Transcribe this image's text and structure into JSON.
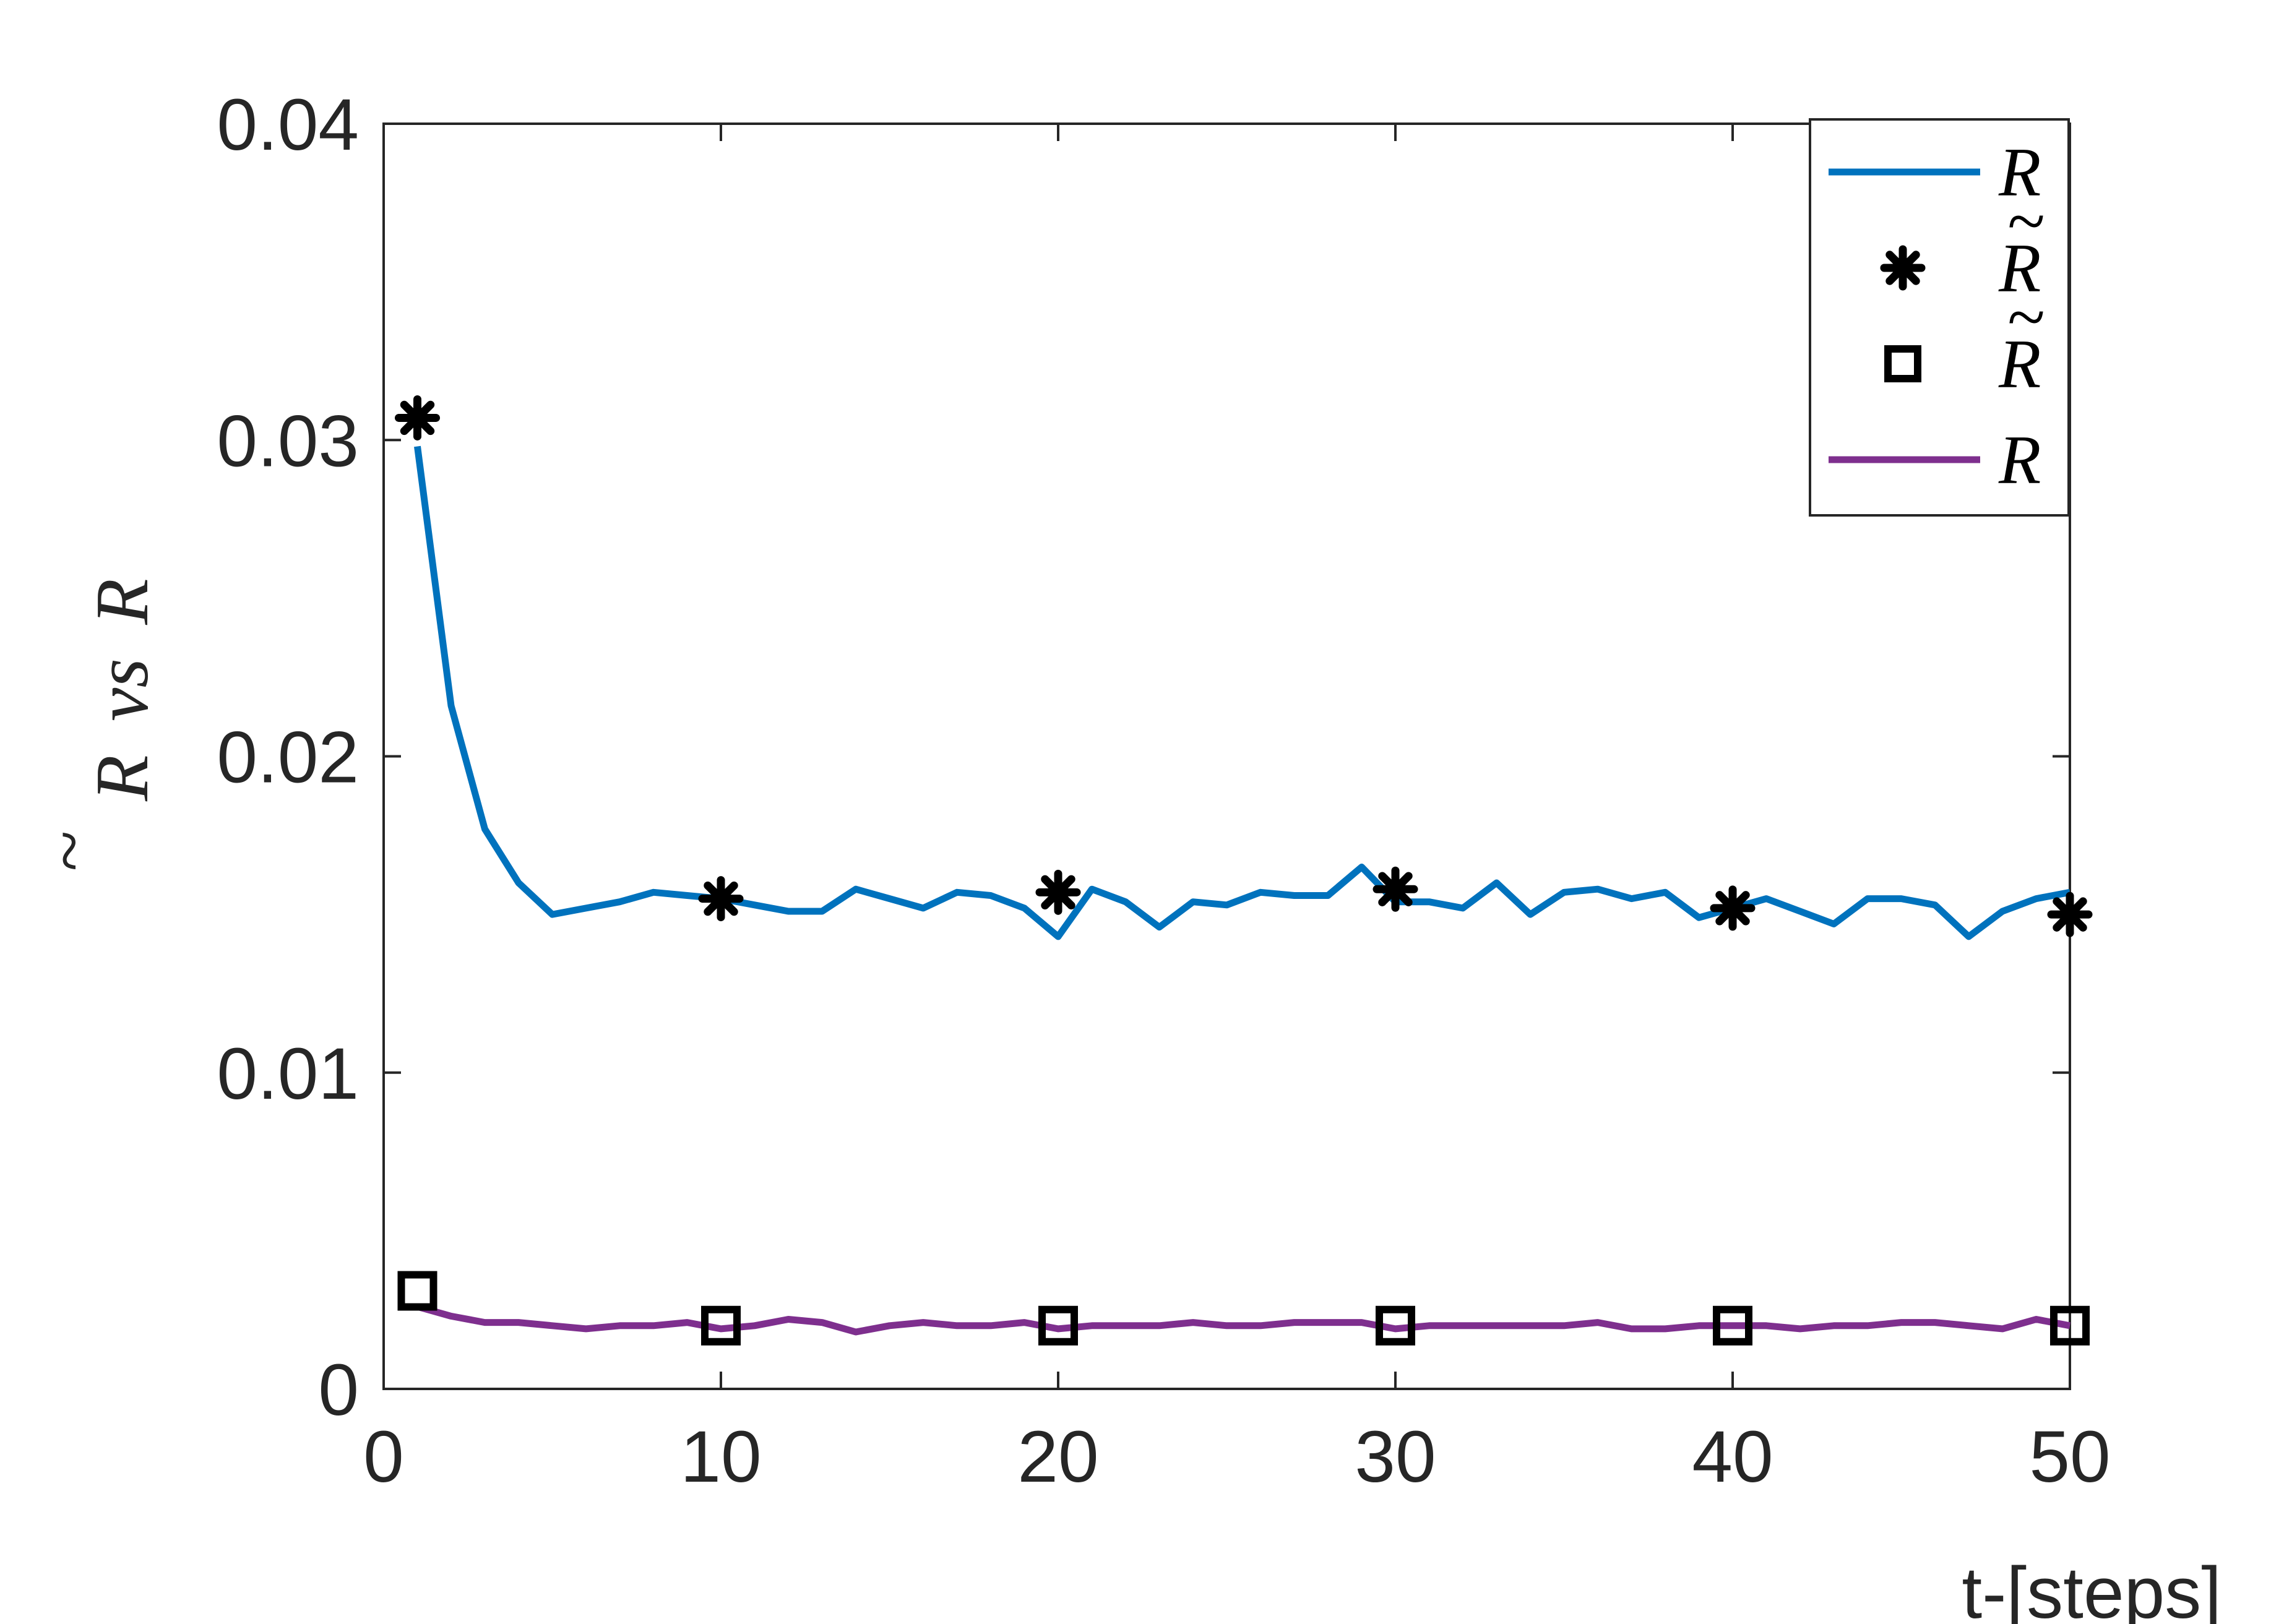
{
  "chart_data": {
    "type": "line",
    "title": "",
    "xlabel": "t-[steps]",
    "ylabel": {
      "tilde": "~",
      "r_tilde": "R",
      "vs": "vs",
      "r": "R"
    },
    "xlim": [
      0,
      50
    ],
    "ylim": [
      0,
      0.04
    ],
    "xticks": [
      "0",
      "10",
      "20",
      "30",
      "40",
      "50"
    ],
    "yticks": [
      "0",
      "0.01",
      "0.02",
      "0.03",
      "0.04"
    ],
    "grid": false,
    "legend_position": "top-right",
    "legend": [
      {
        "tilde": "",
        "label": "R",
        "kind": "line",
        "color": "#0072BD"
      },
      {
        "tilde": "~",
        "label": "R",
        "kind": "asterisk",
        "color": "#000000"
      },
      {
        "tilde": "~",
        "label": "R",
        "kind": "square",
        "color": "#000000"
      },
      {
        "tilde": "",
        "label": "R",
        "kind": "line",
        "color": "#7E2F8E"
      }
    ],
    "series": [
      {
        "kind": "line",
        "color": "#0072BD",
        "x": [
          1,
          2,
          3,
          4,
          5,
          6,
          7,
          8,
          9,
          10,
          11,
          12,
          13,
          14,
          15,
          16,
          17,
          18,
          19,
          20,
          21,
          22,
          23,
          24,
          25,
          26,
          27,
          28,
          29,
          30,
          31,
          32,
          33,
          34,
          35,
          36,
          37,
          38,
          39,
          40,
          41,
          42,
          43,
          44,
          45,
          46,
          47,
          48,
          49,
          50
        ],
        "values": [
          0.0298,
          0.0216,
          0.0177,
          0.016,
          0.015,
          0.0152,
          0.0154,
          0.0157,
          0.0156,
          0.0155,
          0.0153,
          0.0151,
          0.0151,
          0.0158,
          0.0155,
          0.0152,
          0.0157,
          0.0156,
          0.0152,
          0.0143,
          0.0158,
          0.0154,
          0.0146,
          0.0154,
          0.0153,
          0.0157,
          0.0156,
          0.0156,
          0.0165,
          0.0154,
          0.0154,
          0.0152,
          0.016,
          0.015,
          0.0157,
          0.0158,
          0.0155,
          0.0157,
          0.0149,
          0.0152,
          0.0155,
          0.0151,
          0.0147,
          0.0155,
          0.0155,
          0.0153,
          0.0143,
          0.0151,
          0.0155,
          0.0157
        ]
      },
      {
        "kind": "asterisk",
        "color": "#000000",
        "x": [
          1,
          10,
          20,
          30,
          40,
          50
        ],
        "values": [
          0.0307,
          0.0155,
          0.0157,
          0.0158,
          0.0152,
          0.015
        ]
      },
      {
        "kind": "square",
        "color": "#000000",
        "x": [
          1,
          10,
          20,
          30,
          40,
          50
        ],
        "values": [
          0.0031,
          0.002,
          0.002,
          0.002,
          0.002,
          0.002
        ]
      },
      {
        "kind": "line",
        "color": "#7E2F8E",
        "x": [
          1,
          2,
          3,
          4,
          5,
          6,
          7,
          8,
          9,
          10,
          11,
          12,
          13,
          14,
          15,
          16,
          17,
          18,
          19,
          20,
          21,
          22,
          23,
          24,
          25,
          26,
          27,
          28,
          29,
          30,
          31,
          32,
          33,
          34,
          35,
          36,
          37,
          38,
          39,
          40,
          41,
          42,
          43,
          44,
          45,
          46,
          47,
          48,
          49,
          50
        ],
        "values": [
          0.0026,
          0.0023,
          0.0021,
          0.0021,
          0.002,
          0.0019,
          0.002,
          0.002,
          0.0021,
          0.0019,
          0.002,
          0.0022,
          0.0021,
          0.0018,
          0.002,
          0.0021,
          0.002,
          0.002,
          0.0021,
          0.0019,
          0.002,
          0.002,
          0.002,
          0.0021,
          0.002,
          0.002,
          0.0021,
          0.0021,
          0.0021,
          0.0019,
          0.002,
          0.002,
          0.002,
          0.002,
          0.002,
          0.0021,
          0.0019,
          0.0019,
          0.002,
          0.002,
          0.002,
          0.0019,
          0.002,
          0.002,
          0.0021,
          0.0021,
          0.002,
          0.0019,
          0.0022,
          0.002
        ]
      }
    ]
  }
}
